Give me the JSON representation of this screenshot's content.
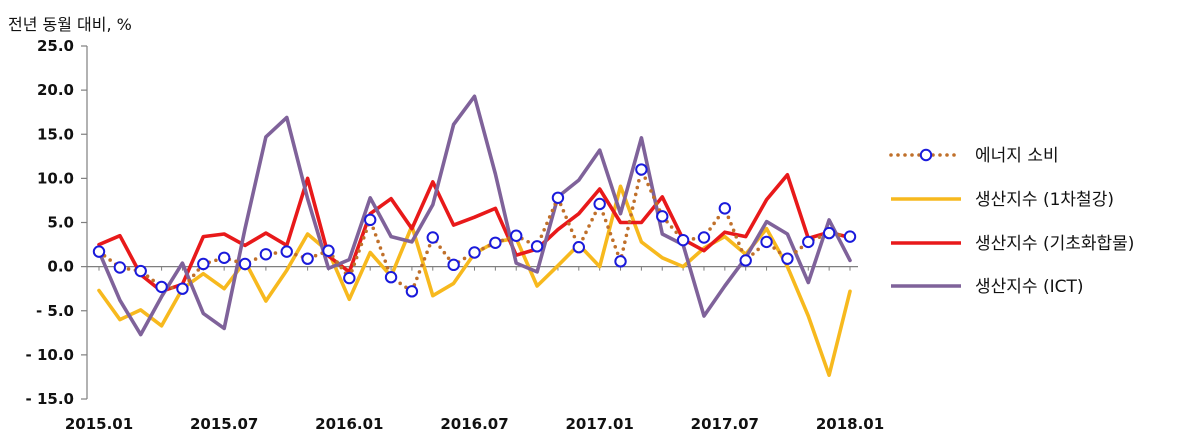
{
  "chart_data": {
    "type": "line",
    "unit_label": "전년 동월 대비, %",
    "ylim": [
      -15,
      25
    ],
    "yticks": [
      "25.0",
      "20.0",
      "15.0",
      "10.0",
      "5.0",
      "0.0",
      "- 5.0",
      "- 10.0",
      "- 15.0"
    ],
    "ytick_values": [
      25,
      20,
      15,
      10,
      5,
      0,
      -5,
      -10,
      -15
    ],
    "x_labels": [
      "2015.01",
      "2015.07",
      "2016.01",
      "2016.07",
      "2017.01",
      "2017.07",
      "2018.01"
    ],
    "x_label_index": [
      0,
      6,
      12,
      18,
      24,
      30,
      36
    ],
    "x_count": 37,
    "legend_position": "right",
    "series": [
      {
        "name": "에너지 소비",
        "style": "dotted-circles",
        "color": "#C0702A",
        "marker_color": "#1A1ADB",
        "values": [
          1.7,
          -0.1,
          -0.5,
          -2.3,
          -2.5,
          0.3,
          1.0,
          0.3,
          1.4,
          1.7,
          0.9,
          1.8,
          -1.3,
          5.3,
          -1.2,
          -2.8,
          3.3,
          0.2,
          1.6,
          2.7,
          3.5,
          2.3,
          7.8,
          2.2,
          7.1,
          0.6,
          11.0,
          5.7,
          3.0,
          3.3,
          6.6,
          0.7,
          2.8,
          0.9,
          2.8,
          3.8,
          3.4
        ]
      },
      {
        "name": "생산지수 (1차철강)",
        "style": "solid",
        "color": "#F7B91E",
        "values": [
          -2.7,
          -6.0,
          -4.9,
          -6.7,
          -2.5,
          -0.8,
          -2.5,
          0.6,
          -3.9,
          -0.4,
          3.7,
          1.7,
          -3.7,
          1.6,
          -1.1,
          4.6,
          -3.3,
          -1.9,
          1.5,
          2.8,
          3.2,
          -2.2,
          0.1,
          2.5,
          0.0,
          9.1,
          2.8,
          1.0,
          0.0,
          2.1,
          3.4,
          1.4,
          4.3,
          0.0,
          -5.6,
          -12.3,
          -2.8
        ]
      },
      {
        "name": "생산지수 (기초화합물)",
        "style": "solid",
        "color": "#E8191A",
        "values": [
          2.5,
          3.5,
          -0.9,
          -2.8,
          -2.0,
          3.4,
          3.7,
          2.4,
          3.8,
          2.4,
          10.0,
          1.2,
          -0.6,
          6.0,
          7.7,
          4.3,
          9.6,
          4.7,
          5.6,
          6.6,
          1.3,
          2.0,
          4.2,
          6.0,
          8.8,
          5.0,
          5.0,
          7.9,
          3.1,
          1.8,
          3.9,
          3.4,
          7.6,
          10.4,
          3.2,
          3.9,
          3.3
        ]
      },
      {
        "name": "생산지수 (ICT)",
        "style": "solid",
        "color": "#7F629A",
        "values": [
          1.7,
          -3.8,
          -7.7,
          -3.4,
          0.4,
          -5.3,
          -7.0,
          4.3,
          14.7,
          16.9,
          7.7,
          -0.2,
          0.8,
          7.8,
          3.4,
          2.8,
          7.0,
          16.1,
          19.3,
          10.5,
          0.4,
          -0.6,
          7.9,
          9.8,
          13.2,
          6.0,
          14.6,
          3.7,
          2.5,
          -5.6,
          -2.2,
          1.0,
          5.1,
          3.7,
          -1.8,
          5.3,
          0.7
        ]
      }
    ]
  }
}
